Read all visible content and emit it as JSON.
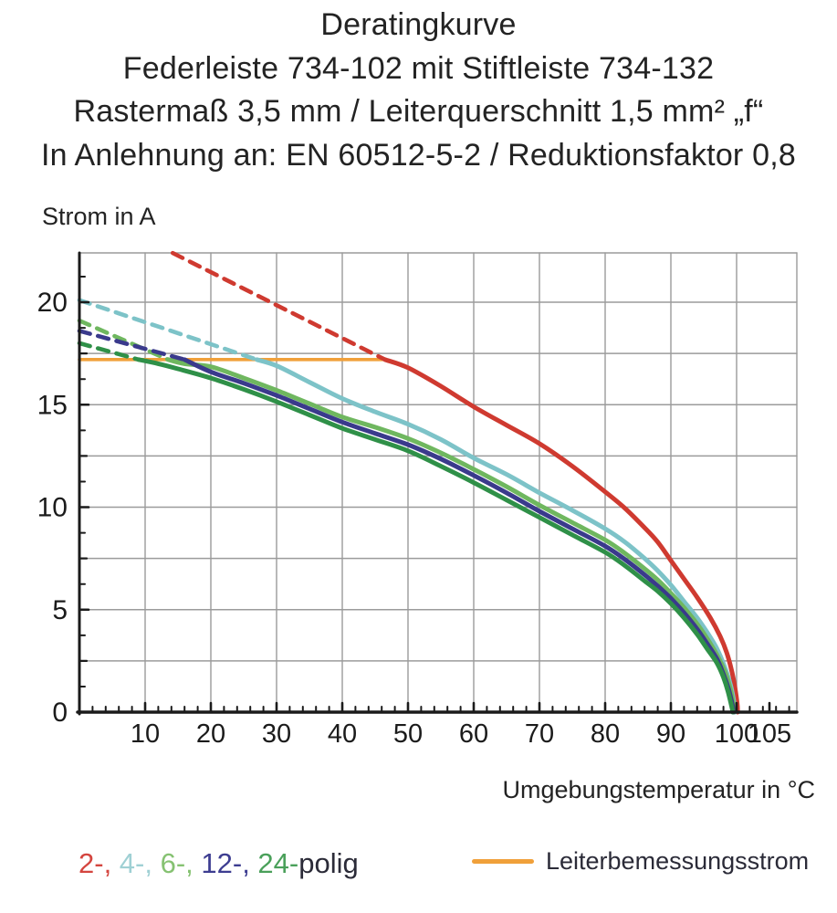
{
  "header": {
    "line1": "Deratingkurve",
    "line2": "Federleiste 734-102 mit Stiftleiste 734-132",
    "line3": "Rastermaß 3,5 mm / Leiterquerschnitt 1,5 mm² „f“",
    "line4": "In Anlehnung an: EN 60512-5-2 / Reduktionsfaktor 0,8"
  },
  "labels": {
    "y_axis": "Strom in A",
    "x_axis": "Umgebungstemperatur in °C"
  },
  "legend": {
    "pole_segments": [
      {
        "text": "2-, ",
        "color": "#d4453f"
      },
      {
        "text": "4-, ",
        "color": "#9fd0d4"
      },
      {
        "text": "6-, ",
        "color": "#86c272"
      },
      {
        "text": "12-, ",
        "color": "#3d3d91"
      },
      {
        "text": "24-",
        "color": "#4aa05a"
      },
      {
        "text": "polig",
        "color": "#2b2b38"
      }
    ],
    "reference_label": "Leiterbemessungsstrom",
    "reference_color": "#f0a03a"
  },
  "chart_data": {
    "type": "line",
    "title": "Deratingkurve",
    "xlabel": "Umgebungstemperatur in °C",
    "ylabel": "Strom in A",
    "xlim": [
      0,
      109
    ],
    "ylim": [
      0,
      22.4
    ],
    "x_ticks": [
      10,
      20,
      30,
      40,
      50,
      60,
      70,
      80,
      90,
      100,
      105
    ],
    "y_ticks": [
      0,
      5,
      10,
      15,
      20
    ],
    "minor_x_step": 2,
    "minor_y_step": 1.25,
    "grid": {
      "x_step": 10,
      "y_step": 2.5,
      "color": "#9b9b9b"
    },
    "axis_color": "#1b1b1b",
    "reference_line": {
      "name": "Leiterbemessungsstrom",
      "value": 17.2,
      "x_range": [
        0,
        46.5
      ],
      "color": "#f0a03a"
    },
    "series": [
      {
        "name": "2-polig",
        "color": "#cf3a30",
        "dashed_points": [
          [
            14.2,
            22.4
          ],
          [
            46.5,
            17.2
          ]
        ],
        "solid_points": [
          [
            46.5,
            17.2
          ],
          [
            50,
            16.8
          ],
          [
            55,
            15.9
          ],
          [
            60,
            14.9
          ],
          [
            65,
            14.0
          ],
          [
            70,
            13.1
          ],
          [
            75,
            12.0
          ],
          [
            80,
            10.75
          ],
          [
            83,
            9.95
          ],
          [
            86,
            9.0
          ],
          [
            88,
            8.3
          ],
          [
            90,
            7.4
          ],
          [
            92,
            6.5
          ],
          [
            94,
            5.6
          ],
          [
            96,
            4.6
          ],
          [
            97.5,
            3.7
          ],
          [
            98.5,
            2.9
          ],
          [
            99.2,
            2.1
          ],
          [
            99.7,
            1.3
          ],
          [
            100.1,
            0.4
          ],
          [
            100.15,
            0
          ]
        ]
      },
      {
        "name": "4-polig",
        "color": "#7dc3c8",
        "dashed_points": [
          [
            0,
            20.1
          ],
          [
            27,
            17.2
          ]
        ],
        "solid_points": [
          [
            27,
            17.2
          ],
          [
            30,
            16.9
          ],
          [
            35,
            16.1
          ],
          [
            40,
            15.3
          ],
          [
            45,
            14.65
          ],
          [
            50,
            14.05
          ],
          [
            55,
            13.3
          ],
          [
            60,
            12.4
          ],
          [
            65,
            11.6
          ],
          [
            70,
            10.7
          ],
          [
            75,
            9.85
          ],
          [
            80,
            8.95
          ],
          [
            83,
            8.3
          ],
          [
            86,
            7.5
          ],
          [
            88,
            6.9
          ],
          [
            90,
            6.2
          ],
          [
            92,
            5.4
          ],
          [
            94,
            4.6
          ],
          [
            95.5,
            3.9
          ],
          [
            97,
            3.1
          ],
          [
            98.2,
            2.2
          ],
          [
            99.1,
            1.3
          ],
          [
            99.6,
            0.5
          ],
          [
            99.75,
            0
          ]
        ]
      },
      {
        "name": "6-polig",
        "color": "#6fb75f",
        "dashed_points": [
          [
            0,
            19.1
          ],
          [
            13.5,
            17.2
          ]
        ],
        "solid_points": [
          [
            13.5,
            17.2
          ],
          [
            16,
            17.0
          ],
          [
            20,
            16.85
          ],
          [
            25,
            16.3
          ],
          [
            30,
            15.7
          ],
          [
            35,
            15.05
          ],
          [
            40,
            14.4
          ],
          [
            45,
            13.9
          ],
          [
            50,
            13.35
          ],
          [
            55,
            12.65
          ],
          [
            60,
            11.85
          ],
          [
            65,
            11.0
          ],
          [
            70,
            10.1
          ],
          [
            75,
            9.25
          ],
          [
            80,
            8.4
          ],
          [
            83,
            7.75
          ],
          [
            86,
            7.0
          ],
          [
            88,
            6.45
          ],
          [
            90,
            5.8
          ],
          [
            92,
            5.1
          ],
          [
            94,
            4.3
          ],
          [
            95.5,
            3.6
          ],
          [
            97,
            2.8
          ],
          [
            98.2,
            2.0
          ],
          [
            99,
            1.2
          ],
          [
            99.5,
            0.4
          ],
          [
            99.6,
            0
          ]
        ]
      },
      {
        "name": "12-polig",
        "color": "#3a3a8c",
        "dashed_points": [
          [
            0,
            18.6
          ],
          [
            16,
            17.2
          ]
        ],
        "solid_points": [
          [
            16,
            17.2
          ],
          [
            20,
            16.6
          ],
          [
            25,
            16.05
          ],
          [
            30,
            15.45
          ],
          [
            35,
            14.8
          ],
          [
            40,
            14.15
          ],
          [
            45,
            13.6
          ],
          [
            50,
            13.05
          ],
          [
            55,
            12.35
          ],
          [
            60,
            11.55
          ],
          [
            65,
            10.7
          ],
          [
            70,
            9.8
          ],
          [
            75,
            8.95
          ],
          [
            80,
            8.1
          ],
          [
            83,
            7.45
          ],
          [
            86,
            6.7
          ],
          [
            88,
            6.15
          ],
          [
            90,
            5.55
          ],
          [
            92,
            4.85
          ],
          [
            94,
            4.05
          ],
          [
            95.5,
            3.35
          ],
          [
            97,
            2.6
          ],
          [
            98,
            1.85
          ],
          [
            98.8,
            1.1
          ],
          [
            99.4,
            0.3
          ],
          [
            99.5,
            0
          ]
        ]
      },
      {
        "name": "24-polig",
        "color": "#2f9048",
        "dashed_points": [
          [
            0,
            18.0
          ],
          [
            9,
            17.2
          ]
        ],
        "solid_points": [
          [
            9,
            17.2
          ],
          [
            12,
            17.0
          ],
          [
            15,
            16.75
          ],
          [
            20,
            16.3
          ],
          [
            25,
            15.75
          ],
          [
            30,
            15.15
          ],
          [
            35,
            14.5
          ],
          [
            40,
            13.85
          ],
          [
            45,
            13.3
          ],
          [
            50,
            12.75
          ],
          [
            55,
            12.0
          ],
          [
            60,
            11.2
          ],
          [
            65,
            10.35
          ],
          [
            70,
            9.5
          ],
          [
            75,
            8.65
          ],
          [
            80,
            7.8
          ],
          [
            83,
            7.15
          ],
          [
            86,
            6.4
          ],
          [
            88,
            5.9
          ],
          [
            90,
            5.3
          ],
          [
            92,
            4.6
          ],
          [
            94,
            3.8
          ],
          [
            95.5,
            3.1
          ],
          [
            97,
            2.4
          ],
          [
            98,
            1.7
          ],
          [
            98.7,
            1.0
          ],
          [
            99.3,
            0.2
          ],
          [
            99.4,
            0
          ]
        ]
      }
    ]
  }
}
